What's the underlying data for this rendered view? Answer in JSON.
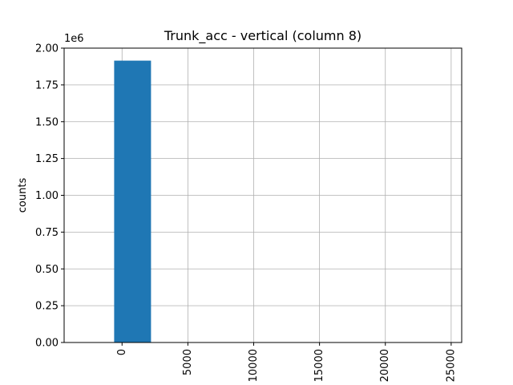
{
  "chart_data": {
    "type": "bar",
    "title": "Trunk_acc - vertical (column 8)",
    "xlabel": "",
    "ylabel": "counts",
    "y_offset_label": "1e6",
    "xlim": [
      -4400,
      25800
    ],
    "ylim": [
      0,
      2.0
    ],
    "x_ticks": [
      0,
      5000,
      10000,
      15000,
      20000,
      25000
    ],
    "x_tick_labels": [
      "0",
      "5000",
      "10000",
      "15000",
      "20000",
      "25000"
    ],
    "x_tick_rotation": -90,
    "y_ticks": [
      0.0,
      0.25,
      0.5,
      0.75,
      1.0,
      1.25,
      1.5,
      1.75,
      2.0
    ],
    "y_tick_labels": [
      "0.00",
      "0.25",
      "0.50",
      "0.75",
      "1.00",
      "1.25",
      "1.50",
      "1.75",
      "2.00"
    ],
    "grid": true,
    "bars": [
      {
        "x0": -600,
        "x1": 2200,
        "value": 1.915
      }
    ],
    "colors": {
      "bar": "#1f77b4",
      "grid": "#b0b0b0",
      "axis": "#000000"
    }
  }
}
